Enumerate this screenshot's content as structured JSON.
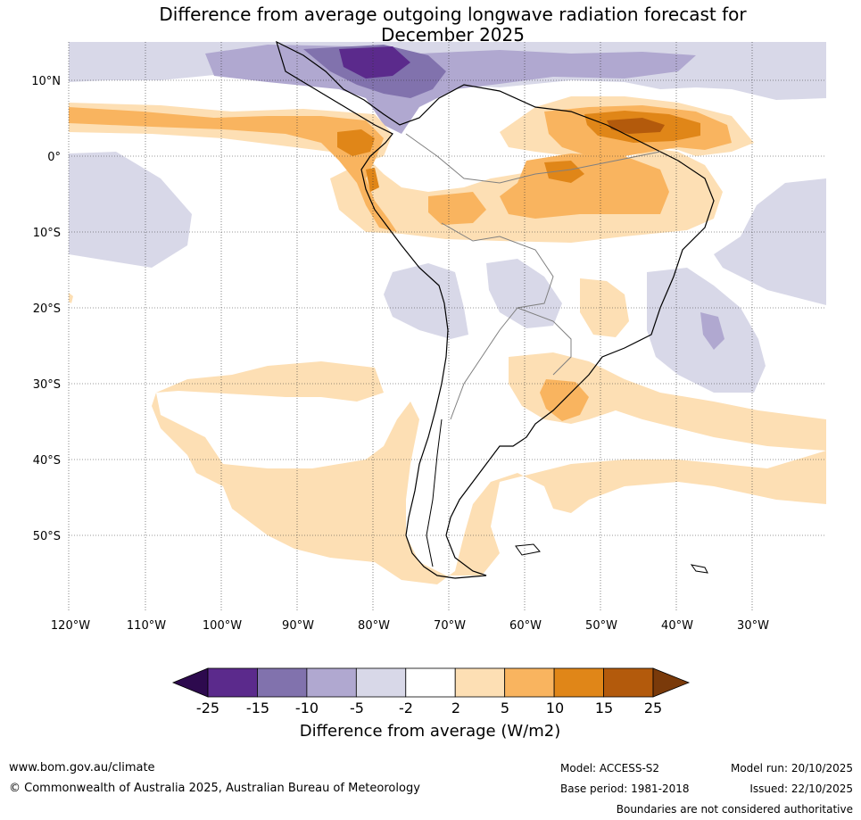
{
  "title": {
    "line1": "Difference from average outgoing longwave radiation forecast for",
    "line2": "December 2025"
  },
  "map": {
    "lat_labels": [
      "10°N",
      "0°",
      "10°S",
      "20°S",
      "30°S",
      "40°S",
      "50°S"
    ],
    "lon_labels": [
      "120°W",
      "110°W",
      "100°W",
      "90°W",
      "80°W",
      "70°W",
      "60°W",
      "50°W",
      "40°W",
      "30°W"
    ]
  },
  "colorbar": {
    "tick_labels": [
      "-25",
      "-15",
      "-10",
      "-5",
      "-2",
      "2",
      "5",
      "10",
      "15",
      "25"
    ],
    "colors": [
      "#2d0a4e",
      "#5b2a8c",
      "#8172ad",
      "#b0a8d0",
      "#d8d8e8",
      "#ffffff",
      "#fddfb4",
      "#f9b45f",
      "#e08618",
      "#b35a0c",
      "#7a3a0a"
    ],
    "title": "Difference from average (W/m2)"
  },
  "footer": {
    "url": "www.bom.gov.au/climate",
    "copyright": "© Commonwealth of Australia 2025, Australian Bureau of Meteorology",
    "model": "Model: ACCESS-S2",
    "model_run": "Model run: 20/10/2025",
    "base_period": "Base period: 1981-2018",
    "issued": "Issued: 22/10/2025",
    "disclaimer": "Boundaries are not considered authoritative"
  }
}
